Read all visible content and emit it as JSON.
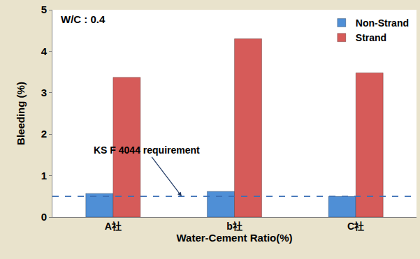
{
  "chart_data": {
    "type": "bar",
    "annotations": [
      "W/C : 0.4"
    ],
    "x_label": "Water-Cement Ratio(%)",
    "y_label": "Bleeding (%)",
    "categories": [
      "A社",
      "b社",
      "C社"
    ],
    "series": [
      {
        "name": "Non-Strand",
        "color": "#4f8fd6",
        "values": [
          0.57,
          0.62,
          0.5
        ]
      },
      {
        "name": "Strand",
        "color": "#d65b59",
        "values": [
          3.37,
          4.3,
          3.48
        ]
      }
    ],
    "ylim": [
      0,
      5
    ],
    "yticks": [
      0,
      1,
      2,
      3,
      4,
      5
    ],
    "grid": false,
    "legend": "upper right",
    "reference_line": {
      "value": 0.5,
      "label": "KS F 4044 requirement"
    }
  }
}
